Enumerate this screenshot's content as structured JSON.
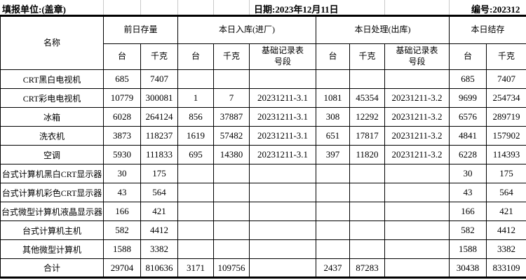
{
  "topbar": {
    "unit_label": "填报单位:(盖章)",
    "date_label": "日期:2023年12月11日",
    "serial_label": "编号:202312"
  },
  "table": {
    "header": {
      "name": "名称",
      "prev_stock": "前日存量",
      "today_in": "本日入库(进厂)",
      "today_out": "本日处理(出库)",
      "balance": "本日结存"
    },
    "subheaders": [
      "台",
      "千克",
      "台",
      "千克",
      "基础记录表\n号段",
      "台",
      "千克",
      "基础记录表\n号段",
      "台",
      "千克"
    ],
    "rows": [
      {
        "name": "CRT黑白电视机",
        "cells": [
          "685",
          "7407",
          "",
          "",
          "",
          "",
          "",
          "",
          "685",
          "7407"
        ]
      },
      {
        "name": "CRT彩电电视机",
        "cells": [
          "10779",
          "300081",
          "1",
          "7",
          "20231211-3.1",
          "1081",
          "45354",
          "20231211-3.2",
          "9699",
          "254734"
        ]
      },
      {
        "name": "冰箱",
        "cells": [
          "6028",
          "264124",
          "856",
          "37887",
          "20231211-3.1",
          "308",
          "12292",
          "20231211-3.2",
          "6576",
          "289719"
        ]
      },
      {
        "name": "洗衣机",
        "cells": [
          "3873",
          "118237",
          "1619",
          "57482",
          "20231211-3.1",
          "651",
          "17817",
          "20231211-3.2",
          "4841",
          "157902"
        ]
      },
      {
        "name": "空调",
        "cells": [
          "5930",
          "111833",
          "695",
          "14380",
          "20231211-3.1",
          "397",
          "11820",
          "20231211-3.2",
          "6228",
          "114393"
        ]
      },
      {
        "name": "台式计算机黑白CRT显示器",
        "cells": [
          "30",
          "175",
          "",
          "",
          "",
          "",
          "",
          "",
          "30",
          "175"
        ]
      },
      {
        "name": "台式计算机彩色CRT显示器",
        "cells": [
          "43",
          "564",
          "",
          "",
          "",
          "",
          "",
          "",
          "43",
          "564"
        ]
      },
      {
        "name": "台式微型计算机液晶显示器",
        "cells": [
          "166",
          "421",
          "",
          "",
          "",
          "",
          "",
          "",
          "166",
          "421"
        ]
      },
      {
        "name": "台式计算机主机",
        "cells": [
          "582",
          "4412",
          "",
          "",
          "",
          "",
          "",
          "",
          "582",
          "4412"
        ]
      },
      {
        "name": "其他微型计算机",
        "cells": [
          "1588",
          "3382",
          "",
          "",
          "",
          "",
          "",
          "",
          "1588",
          "3382"
        ]
      },
      {
        "name": "合计",
        "cells": [
          "29704",
          "810636",
          "3171",
          "109756",
          "",
          "2437",
          "87283",
          "",
          "30438",
          "833109"
        ]
      }
    ]
  }
}
